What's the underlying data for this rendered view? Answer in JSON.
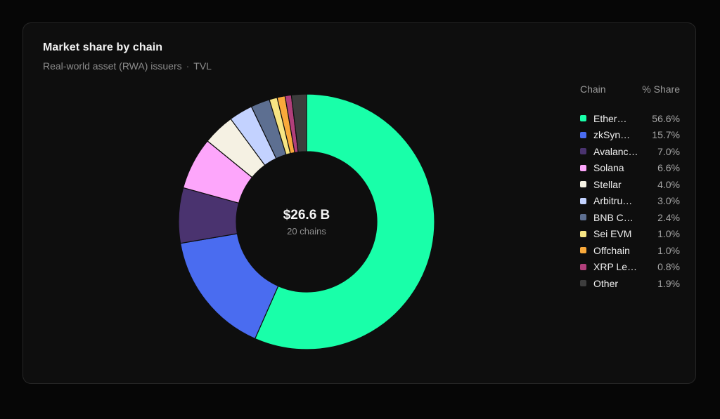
{
  "header": {
    "title": "Market share by chain",
    "subtitle_left": "Real-world asset (RWA) issuers",
    "separator": "·",
    "subtitle_right": "TVL"
  },
  "center": {
    "total": "$26.6 B",
    "count": "20 chains"
  },
  "legend": {
    "col_chain": "Chain",
    "col_share": "% Share",
    "items": [
      {
        "name": "Ether…",
        "share": "56.6%",
        "color": "#19ffa9"
      },
      {
        "name": "zkSyn…",
        "share": "15.7%",
        "color": "#4a6cf0"
      },
      {
        "name": "Avalanc…",
        "share": "7.0%",
        "color": "#4a336f"
      },
      {
        "name": "Solana",
        "share": "6.6%",
        "color": "#fda6fb"
      },
      {
        "name": "Stellar",
        "share": "4.0%",
        "color": "#f5f1e3"
      },
      {
        "name": "Arbitru…",
        "share": "3.0%",
        "color": "#c3d2ff"
      },
      {
        "name": "BNB C…",
        "share": "2.4%",
        "color": "#5d6f91"
      },
      {
        "name": "Sei EVM",
        "share": "1.0%",
        "color": "#f7e583"
      },
      {
        "name": "Offchain",
        "share": "1.0%",
        "color": "#f9a93b"
      },
      {
        "name": "XRP Le…",
        "share": "0.8%",
        "color": "#b13f7b"
      },
      {
        "name": "Other",
        "share": "1.9%",
        "color": "#3d3d3d"
      }
    ]
  },
  "chart_data": {
    "type": "pie",
    "title": "Market share by chain",
    "subtitle": "Real-world asset (RWA) issuers · TVL",
    "categories": [
      "Ether…",
      "zkSyn…",
      "Avalanc…",
      "Solana",
      "Stellar",
      "Arbitru…",
      "BNB C…",
      "Sei EVM",
      "Offchain",
      "XRP Le…",
      "Other"
    ],
    "values": [
      56.6,
      15.7,
      7.0,
      6.6,
      4.0,
      3.0,
      2.4,
      1.0,
      1.0,
      0.8,
      1.9
    ],
    "colors": [
      "#19ffa9",
      "#4a6cf0",
      "#4a336f",
      "#fda6fb",
      "#f5f1e3",
      "#c3d2ff",
      "#5d6f91",
      "#f7e583",
      "#f9a93b",
      "#b13f7b",
      "#3d3d3d"
    ],
    "donut": true,
    "center_label": "$26.6 B",
    "center_sublabel": "20 chains",
    "legend_position": "right"
  }
}
